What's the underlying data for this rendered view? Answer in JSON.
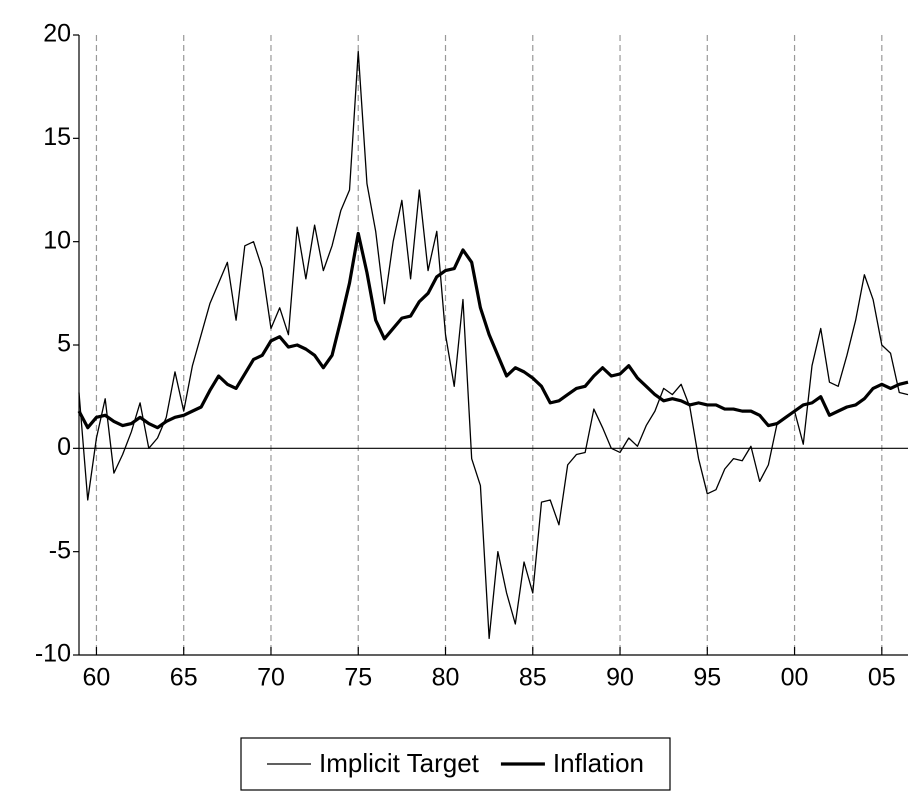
{
  "chart_data": {
    "type": "line",
    "x": [
      1959,
      1959.5,
      1960,
      1960.5,
      1961,
      1961.5,
      1962,
      1962.5,
      1963,
      1963.5,
      1964,
      1964.5,
      1965,
      1965.5,
      1966,
      1966.5,
      1967,
      1967.5,
      1968,
      1968.5,
      1969,
      1969.5,
      1970,
      1970.5,
      1971,
      1971.5,
      1972,
      1972.5,
      1973,
      1973.5,
      1974,
      1974.5,
      1975,
      1975.5,
      1976,
      1976.5,
      1977,
      1977.5,
      1978,
      1978.5,
      1979,
      1979.5,
      1980,
      1980.5,
      1981,
      1981.5,
      1982,
      1982.5,
      1983,
      1983.5,
      1984,
      1984.5,
      1985,
      1985.5,
      1986,
      1986.5,
      1987,
      1987.5,
      1988,
      1988.5,
      1989,
      1989.5,
      1990,
      1990.5,
      1991,
      1991.5,
      1992,
      1992.5,
      1993,
      1993.5,
      1994,
      1994.5,
      1995,
      1995.5,
      1996,
      1996.5,
      1997,
      1997.5,
      1998,
      1998.5,
      1999,
      1999.5,
      2000,
      2000.5,
      2001,
      2001.5,
      2002,
      2002.5,
      2003,
      2003.5,
      2004,
      2004.5,
      2005,
      2005.5,
      2006,
      2006.5
    ],
    "series": [
      {
        "name": "Implicit Target",
        "color": "#000000",
        "width": 1.3,
        "values": [
          2.7,
          -2.5,
          0.5,
          2.4,
          -1.2,
          -0.3,
          0.8,
          2.2,
          0.0,
          0.5,
          1.5,
          3.7,
          1.8,
          4.0,
          5.5,
          7.0,
          8.0,
          9.0,
          6.2,
          9.8,
          10.0,
          8.7,
          5.8,
          6.8,
          5.5,
          10.7,
          8.2,
          10.8,
          8.6,
          9.8,
          11.5,
          12.5,
          19.2,
          12.8,
          10.5,
          7.0,
          10.0,
          12.0,
          8.2,
          12.5,
          8.6,
          10.5,
          5.5,
          3.0,
          7.2,
          -0.5,
          -1.8,
          -9.2,
          -5.0,
          -7.0,
          -8.5,
          -5.5,
          -7.0,
          -2.6,
          -2.5,
          -3.7,
          -0.8,
          -0.3,
          -0.2,
          1.9,
          1.0,
          0.0,
          -0.2,
          0.5,
          0.1,
          1.1,
          1.8,
          2.9,
          2.6,
          3.1,
          2.0,
          -0.5,
          -2.2,
          -2.0,
          -1.0,
          -0.5,
          -0.6,
          0.1,
          -1.6,
          -0.8,
          1.2,
          1.5,
          1.8,
          0.2,
          4.0,
          5.8,
          3.2,
          3.0,
          4.5,
          6.2,
          8.4,
          7.2,
          5.0,
          4.6,
          2.7,
          2.6
        ]
      },
      {
        "name": "Inflation",
        "color": "#000000",
        "width": 3.2,
        "values": [
          1.8,
          1.0,
          1.5,
          1.6,
          1.3,
          1.1,
          1.2,
          1.5,
          1.2,
          1.0,
          1.3,
          1.5,
          1.6,
          1.8,
          2.0,
          2.8,
          3.5,
          3.1,
          2.9,
          3.6,
          4.3,
          4.5,
          5.2,
          5.4,
          4.9,
          5.0,
          4.8,
          4.5,
          3.9,
          4.5,
          6.2,
          8.0,
          10.4,
          8.5,
          6.2,
          5.3,
          5.8,
          6.3,
          6.4,
          7.1,
          7.5,
          8.3,
          8.6,
          8.7,
          9.6,
          9.0,
          6.8,
          5.5,
          4.5,
          3.5,
          3.9,
          3.7,
          3.4,
          3.0,
          2.2,
          2.3,
          2.6,
          2.9,
          3.0,
          3.5,
          3.9,
          3.5,
          3.6,
          4.0,
          3.4,
          3.0,
          2.6,
          2.3,
          2.4,
          2.3,
          2.1,
          2.2,
          2.1,
          2.1,
          1.9,
          1.9,
          1.8,
          1.8,
          1.6,
          1.1,
          1.2,
          1.5,
          1.8,
          2.1,
          2.2,
          2.5,
          1.6,
          1.8,
          2.0,
          2.1,
          2.4,
          2.9,
          3.1,
          2.9,
          3.1,
          3.2
        ]
      }
    ],
    "xlim": [
      1959,
      2006.5
    ],
    "xticks": [
      {
        "value": 1960,
        "label": "60"
      },
      {
        "value": 1965,
        "label": "65"
      },
      {
        "value": 1970,
        "label": "70"
      },
      {
        "value": 1975,
        "label": "75"
      },
      {
        "value": 1980,
        "label": "80"
      },
      {
        "value": 1985,
        "label": "85"
      },
      {
        "value": 1990,
        "label": "90"
      },
      {
        "value": 1995,
        "label": "95"
      },
      {
        "value": 2000,
        "label": "00"
      },
      {
        "value": 2005,
        "label": "05"
      }
    ],
    "ylim": [
      -10,
      20
    ],
    "yticks": [
      -10,
      -5,
      0,
      5,
      10,
      15,
      20
    ],
    "grid": true,
    "zero_line": true,
    "legend": "bottom"
  }
}
